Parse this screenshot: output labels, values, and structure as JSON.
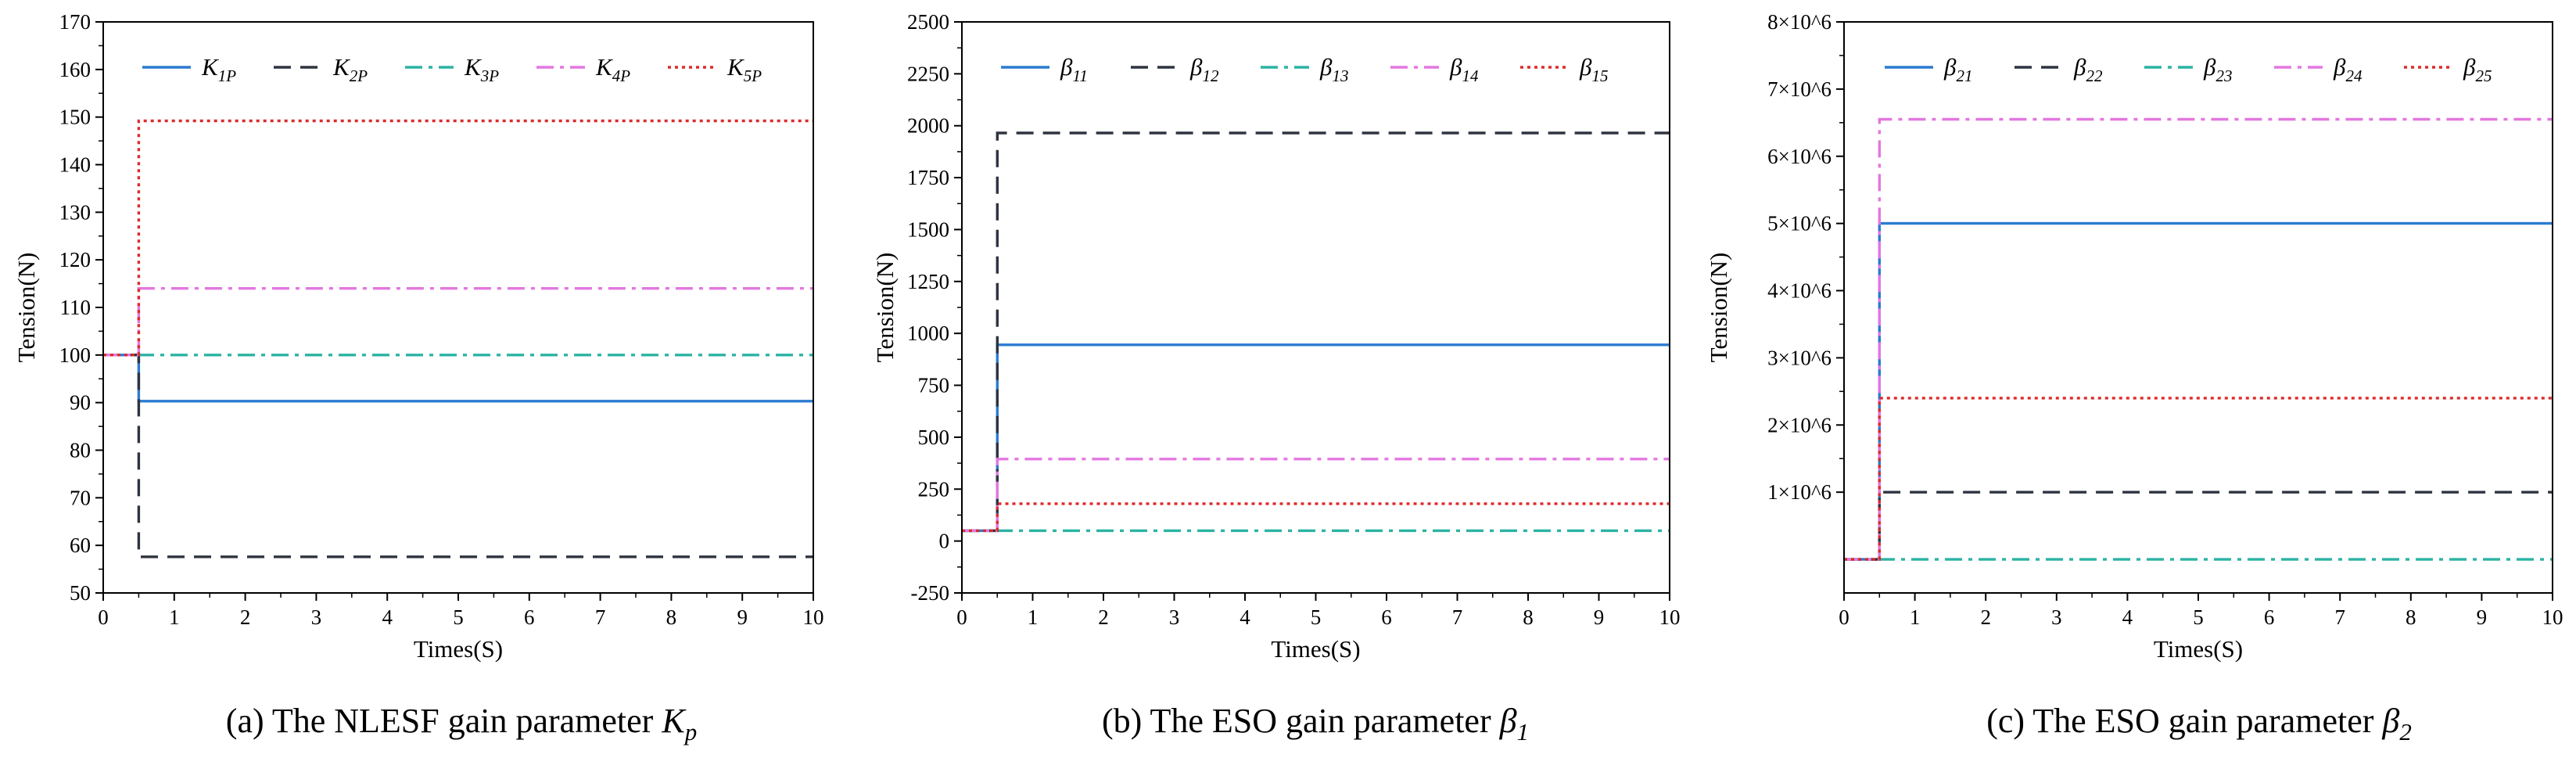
{
  "figure": {
    "panels": [
      {
        "id": "a",
        "caption": {
          "prefix": "(a) The NLESF gain parameter ",
          "symbol": "K",
          "sub": "p"
        }
      },
      {
        "id": "b",
        "caption": {
          "prefix": "(b) The ESO gain parameter ",
          "symbol": "β",
          "sub": "1"
        }
      },
      {
        "id": "c",
        "caption": {
          "prefix": "(c) The ESO gain parameter ",
          "symbol": "β",
          "sub": "2"
        }
      }
    ]
  },
  "chart_data": [
    {
      "type": "line",
      "title": "",
      "xlabel": "Times(S)",
      "ylabel": "Tension(N)",
      "xlim": [
        0,
        10
      ],
      "ylim": [
        50,
        170
      ],
      "xticks": [
        0,
        1,
        2,
        3,
        4,
        5,
        6,
        7,
        8,
        9,
        10
      ],
      "yticks": [
        50,
        60,
        70,
        80,
        90,
        100,
        110,
        120,
        130,
        140,
        150,
        160,
        170
      ],
      "ytick_labels": [
        "50",
        "60",
        "70",
        "80",
        "90",
        "100",
        "110",
        "120",
        "130",
        "140",
        "150",
        "160",
        "170"
      ],
      "legend_position": "top",
      "series": [
        {
          "name": "K1P",
          "label": "K",
          "sub": "1P",
          "color": "#2b7bd1",
          "dash": "solid",
          "x": [
            0,
            0.5,
            0.5,
            10
          ],
          "y": [
            100,
            100,
            90.3,
            90.3
          ]
        },
        {
          "name": "K2P",
          "label": "K",
          "sub": "2P",
          "color": "#2e3440",
          "dash": "dash",
          "x": [
            0,
            0.5,
            0.5,
            10
          ],
          "y": [
            100,
            100,
            57.6,
            57.6
          ]
        },
        {
          "name": "K3P",
          "label": "K",
          "sub": "3P",
          "color": "#2bb3a3",
          "dash": "dashdot",
          "x": [
            0,
            0.5,
            0.5,
            10
          ],
          "y": [
            100,
            100,
            100,
            100
          ]
        },
        {
          "name": "K4P",
          "label": "K",
          "sub": "4P",
          "color": "#e377e0",
          "dash": "dashdot",
          "x": [
            0,
            0.5,
            0.5,
            10
          ],
          "y": [
            100,
            100,
            114,
            114
          ]
        },
        {
          "name": "K5P",
          "label": "K",
          "sub": "5P",
          "color": "#dd2a2a",
          "dash": "dot",
          "x": [
            0,
            0.5,
            0.5,
            10
          ],
          "y": [
            100,
            100,
            149.2,
            149.2
          ]
        }
      ]
    },
    {
      "type": "line",
      "title": "",
      "xlabel": "Times(S)",
      "ylabel": "Tension(N)",
      "xlim": [
        0,
        10
      ],
      "ylim": [
        -250,
        2500
      ],
      "xticks": [
        0,
        1,
        2,
        3,
        4,
        5,
        6,
        7,
        8,
        9,
        10
      ],
      "yticks": [
        -250,
        0,
        250,
        500,
        750,
        1000,
        1250,
        1500,
        1750,
        2000,
        2250,
        2500
      ],
      "ytick_labels": [
        "-250",
        "0",
        "250",
        "500",
        "750",
        "1000",
        "1250",
        "1500",
        "1750",
        "2000",
        "2250",
        "2500"
      ],
      "legend_position": "top",
      "series": [
        {
          "name": "β11",
          "label": "β",
          "sub": "11",
          "color": "#2b7bd1",
          "dash": "solid",
          "x": [
            0,
            0.5,
            0.5,
            10
          ],
          "y": [
            50,
            50,
            945,
            945
          ]
        },
        {
          "name": "β12",
          "label": "β",
          "sub": "12",
          "color": "#2e3440",
          "dash": "dash",
          "x": [
            0,
            0.5,
            0.5,
            10
          ],
          "y": [
            50,
            50,
            1965,
            1965
          ]
        },
        {
          "name": "β13",
          "label": "β",
          "sub": "13",
          "color": "#2bb3a3",
          "dash": "dashdot",
          "x": [
            0,
            0.5,
            0.5,
            10
          ],
          "y": [
            50,
            50,
            50,
            50
          ]
        },
        {
          "name": "β14",
          "label": "β",
          "sub": "14",
          "color": "#e377e0",
          "dash": "dashdot",
          "x": [
            0,
            0.5,
            0.5,
            10
          ],
          "y": [
            50,
            50,
            395,
            395
          ]
        },
        {
          "name": "β15",
          "label": "β",
          "sub": "15",
          "color": "#dd2a2a",
          "dash": "dot",
          "x": [
            0,
            0.5,
            0.5,
            10
          ],
          "y": [
            50,
            50,
            180,
            180
          ]
        }
      ]
    },
    {
      "type": "line",
      "title": "",
      "xlabel": "Times(S)",
      "ylabel": "Tension(N)",
      "xlim": [
        0,
        10
      ],
      "ylim": [
        -500000,
        8000000
      ],
      "xticks": [
        0,
        1,
        2,
        3,
        4,
        5,
        6,
        7,
        8,
        9,
        10
      ],
      "yticks": [
        1000000,
        2000000,
        3000000,
        4000000,
        5000000,
        6000000,
        7000000,
        8000000
      ],
      "ytick_labels": [
        "1×10^6",
        "2×10^6",
        "3×10^6",
        "4×10^6",
        "5×10^6",
        "6×10^6",
        "7×10^6",
        "8×10^6"
      ],
      "legend_position": "top",
      "series": [
        {
          "name": "β21",
          "label": "β",
          "sub": "21",
          "color": "#2b7bd1",
          "dash": "solid",
          "x": [
            0,
            0.5,
            0.5,
            10
          ],
          "y": [
            0,
            0,
            5000000,
            5000000
          ]
        },
        {
          "name": "β22",
          "label": "β",
          "sub": "22",
          "color": "#2e3440",
          "dash": "dash",
          "x": [
            0,
            0.5,
            0.5,
            10
          ],
          "y": [
            0,
            0,
            1000000,
            1000000
          ]
        },
        {
          "name": "β23",
          "label": "β",
          "sub": "23",
          "color": "#2bb3a3",
          "dash": "dashdot",
          "x": [
            0,
            0.5,
            0.5,
            10
          ],
          "y": [
            0,
            0,
            0,
            0
          ]
        },
        {
          "name": "β24",
          "label": "β",
          "sub": "24",
          "color": "#e377e0",
          "dash": "dashdot",
          "x": [
            0,
            0.5,
            0.5,
            10
          ],
          "y": [
            0,
            0,
            6550000,
            6550000
          ]
        },
        {
          "name": "β25",
          "label": "β",
          "sub": "25",
          "color": "#dd2a2a",
          "dash": "dot",
          "x": [
            0,
            0.5,
            0.5,
            10
          ],
          "y": [
            0,
            0,
            2400000,
            2400000
          ]
        }
      ]
    }
  ]
}
